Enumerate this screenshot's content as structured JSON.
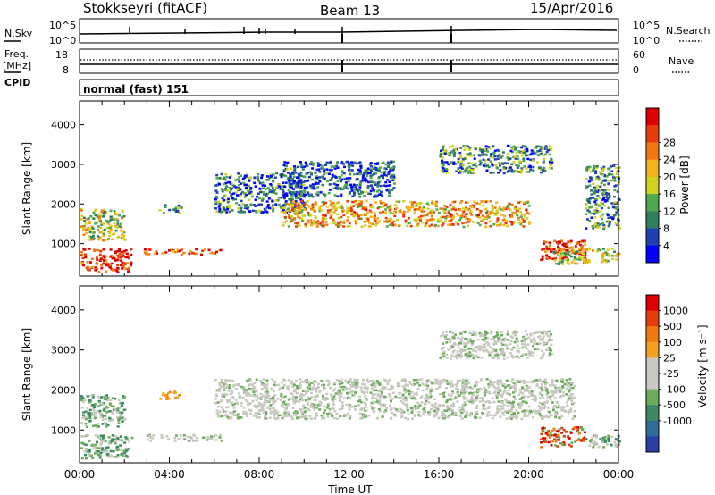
{
  "header": {
    "station": "Stokkseyri (fitACF)",
    "beam": "Beam 13",
    "date": "15/Apr/2016",
    "cpid_label": "CPID",
    "cpid_value": "normal (fast) 151"
  },
  "panels": {
    "nsky": {
      "left_label": "N.Sky",
      "right_label": "N.Search",
      "left_ticks": [
        "10^5",
        "10^0"
      ],
      "right_ticks": [
        "10^5",
        "10^0"
      ]
    },
    "freq": {
      "left_label_1": "Freq.",
      "left_label_2": "[MHz]",
      "right_label": "Nave",
      "left_ticks": [
        "18",
        "8"
      ],
      "right_ticks": [
        "60",
        "0"
      ]
    }
  },
  "chart_data": [
    {
      "type": "heatmap",
      "name": "power",
      "ylabel": "Slant Range [km]",
      "xlabel": "Time UT",
      "x_ticks": [
        "00:00",
        "04:00",
        "08:00",
        "12:00",
        "16:00",
        "20:00",
        "00:00"
      ],
      "y_ticks": [
        1000,
        2000,
        3000,
        4000
      ],
      "ylim": [
        180,
        4600
      ],
      "xlim_hours": [
        0,
        24
      ],
      "colorbar": {
        "label": "Power [dB]",
        "ticks": [
          "4",
          "8",
          "12",
          "16",
          "20",
          "24",
          "28"
        ],
        "colors": [
          "#0000ff",
          "#1f3fb7",
          "#2f7f5f",
          "#4fa84f",
          "#cfd21f",
          "#f2b21a",
          "#f07a12",
          "#e83b0e",
          "#dd0000"
        ]
      },
      "echo_regions": [
        {
          "t": [
            0.0,
            2.3
          ],
          "r": [
            300,
            900
          ],
          "level": 0.9
        },
        {
          "t": [
            0.0,
            2.0
          ],
          "r": [
            1100,
            1900
          ],
          "level": 0.5
        },
        {
          "t": [
            2.8,
            6.3
          ],
          "r": [
            750,
            900
          ],
          "level": 0.8
        },
        {
          "t": [
            3.5,
            4.5
          ],
          "r": [
            1800,
            2000
          ],
          "level": 0.3
        },
        {
          "t": [
            6.0,
            10.0
          ],
          "r": [
            1800,
            2800
          ],
          "level": 0.25
        },
        {
          "t": [
            9.0,
            20.0
          ],
          "r": [
            1450,
            2100
          ],
          "level": 0.65
        },
        {
          "t": [
            9.0,
            14.0
          ],
          "r": [
            2200,
            3100
          ],
          "level": 0.2
        },
        {
          "t": [
            16.0,
            21.0
          ],
          "r": [
            2800,
            3500
          ],
          "level": 0.3
        },
        {
          "t": [
            20.5,
            22.5
          ],
          "r": [
            600,
            1100
          ],
          "level": 0.85
        },
        {
          "t": [
            21.0,
            24.0
          ],
          "r": [
            500,
            900
          ],
          "level": 0.5
        },
        {
          "t": [
            22.5,
            24.0
          ],
          "r": [
            1400,
            3000
          ],
          "level": 0.3
        }
      ]
    },
    {
      "type": "heatmap",
      "name": "velocity",
      "ylabel": "Slant Range [km]",
      "xlabel": "Time UT",
      "x_ticks": [
        "00:00",
        "04:00",
        "08:00",
        "12:00",
        "16:00",
        "20:00",
        "00:00"
      ],
      "y_ticks": [
        1000,
        2000,
        3000,
        4000
      ],
      "ylim": [
        180,
        4600
      ],
      "xlim_hours": [
        0,
        24
      ],
      "colorbar": {
        "label": "Velocity [m s⁻¹]",
        "ticks": [
          "1000",
          "500",
          "100",
          "25",
          "-25",
          "-100",
          "-500",
          "-1000"
        ],
        "colors": [
          "#2a3fa6",
          "#2f6e9a",
          "#3c8a63",
          "#6cac5a",
          "#c8c8c0",
          "#c8c8c0",
          "#f5a023",
          "#f07a12",
          "#e83b0e",
          "#dd0000"
        ]
      },
      "echo_regions": [
        {
          "t": [
            0.0,
            2.3
          ],
          "r": [
            300,
            900
          ],
          "category": "toward-green"
        },
        {
          "t": [
            0.0,
            2.0
          ],
          "r": [
            1100,
            1900
          ],
          "category": "toward-green"
        },
        {
          "t": [
            2.8,
            6.3
          ],
          "r": [
            750,
            900
          ],
          "category": "low-gray"
        },
        {
          "t": [
            3.5,
            4.5
          ],
          "r": [
            1800,
            2000
          ],
          "category": "away-orange"
        },
        {
          "t": [
            6.0,
            22.0
          ],
          "r": [
            1300,
            2300
          ],
          "category": "low-gray"
        },
        {
          "t": [
            16.0,
            21.0
          ],
          "r": [
            2800,
            3500
          ],
          "category": "low-gray"
        },
        {
          "t": [
            20.5,
            22.5
          ],
          "r": [
            600,
            1100
          ],
          "category": "away-red"
        },
        {
          "t": [
            22.5,
            24.0
          ],
          "r": [
            600,
            900
          ],
          "category": "toward-green"
        }
      ]
    }
  ]
}
